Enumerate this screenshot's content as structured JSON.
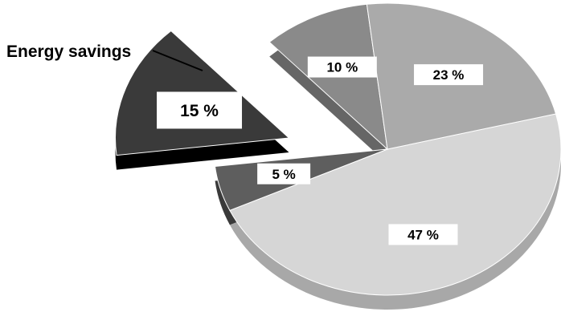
{
  "chart_data": {
    "type": "pie",
    "title": "",
    "slices": [
      {
        "value": 47,
        "label": "47 %",
        "color": "#d6d6d6",
        "side_color": "#a8a8a8",
        "exploded": false
      },
      {
        "value": 5,
        "label": "5 %",
        "color": "#5e5e5e",
        "side_color": "#3a3a3a",
        "exploded": false
      },
      {
        "value": 15,
        "label": "15 %",
        "color": "#3a3a3a",
        "side_color": "#000000",
        "exploded": true
      },
      {
        "value": 10,
        "label": "10 %",
        "color": "#8a8a8a",
        "side_color": "#666666",
        "exploded": false
      },
      {
        "value": 23,
        "label": "23 %",
        "color": "#aaaaaa",
        "side_color": "#8a8a8a",
        "exploded": false
      }
    ],
    "annotation": {
      "text": "Energy savings",
      "target_slice": 2
    }
  }
}
